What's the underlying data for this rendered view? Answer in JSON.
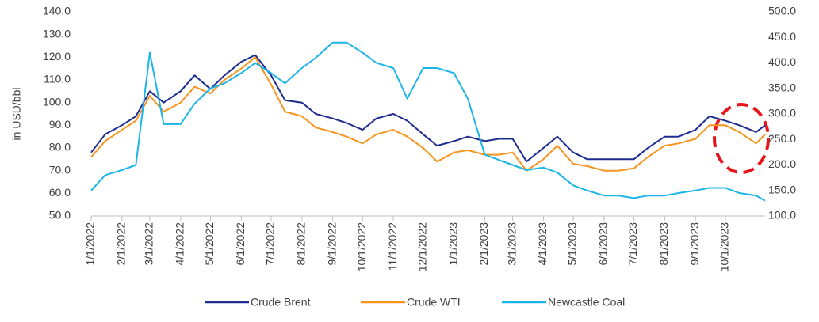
{
  "chart_data": {
    "type": "line",
    "y_label": "in USD/bbl",
    "x": [
      "1/1/2022",
      "1/15/2022",
      "2/1/2022",
      "2/15/2022",
      "3/1/2022",
      "3/15/2022",
      "4/1/2022",
      "4/15/2022",
      "5/1/2022",
      "5/15/2022",
      "6/1/2022",
      "6/15/2022",
      "7/1/2022",
      "7/15/2022",
      "8/1/2022",
      "8/15/2022",
      "9/1/2022",
      "9/15/2022",
      "10/1/2022",
      "10/15/2022",
      "11/1/2022",
      "11/15/2022",
      "12/1/2022",
      "12/15/2022",
      "1/1/2023",
      "1/15/2023",
      "2/1/2023",
      "2/15/2023",
      "3/1/2023",
      "3/15/2023",
      "4/1/2023",
      "4/15/2023",
      "5/1/2023",
      "5/15/2023",
      "6/1/2023",
      "6/15/2023",
      "7/1/2023",
      "7/15/2023",
      "8/1/2023",
      "8/15/2023",
      "9/1/2023",
      "9/15/2023",
      "10/1/2023",
      "10/15/2023",
      "11/1/2023",
      "11/10/2023"
    ],
    "xlim": [
      "1/1/2022",
      "11/10/2023"
    ],
    "xticks": [
      "1/1/2022",
      "2/1/2022",
      "3/1/2022",
      "4/1/2022",
      "5/1/2022",
      "6/1/2022",
      "7/1/2022",
      "8/1/2022",
      "9/1/2022",
      "10/1/2022",
      "11/1/2022",
      "12/1/2022",
      "1/1/2023",
      "2/1/2023",
      "3/1/2023",
      "4/1/2023",
      "5/1/2023",
      "6/1/2023",
      "7/1/2023",
      "8/1/2023",
      "9/1/2023",
      "10/1/2023"
    ],
    "ylim": [
      50,
      140
    ],
    "yticks": [
      {
        "value": 50,
        "label": "50.0"
      },
      {
        "value": 60,
        "label": "60.0"
      },
      {
        "value": 70,
        "label": "70.0"
      },
      {
        "value": 80,
        "label": "80.0"
      },
      {
        "value": 90,
        "label": "90.0"
      },
      {
        "value": 100,
        "label": "100.0"
      },
      {
        "value": 110,
        "label": "110.0"
      },
      {
        "value": 120,
        "label": "120.0"
      },
      {
        "value": 130,
        "label": "130.0"
      },
      {
        "value": 140,
        "label": "140.0"
      }
    ],
    "y2lim": [
      100,
      500
    ],
    "y2ticks": [
      {
        "value": 100,
        "label": "100.0"
      },
      {
        "value": 150,
        "label": "150.0"
      },
      {
        "value": 200,
        "label": "200.0"
      },
      {
        "value": 250,
        "label": "250.0"
      },
      {
        "value": 300,
        "label": "300.0"
      },
      {
        "value": 350,
        "label": "350.0"
      },
      {
        "value": 400,
        "label": "400.0"
      },
      {
        "value": 450,
        "label": "450.0"
      },
      {
        "value": 500,
        "label": "500.0"
      }
    ],
    "series": [
      {
        "name": "Crude Brent",
        "color": "#1f2c8f",
        "values": [
          78,
          86,
          90,
          94,
          105,
          100,
          105,
          112,
          106,
          112,
          118,
          121,
          112,
          101,
          100,
          95,
          93,
          91,
          88,
          93,
          95,
          92,
          86,
          81,
          83,
          85,
          83,
          84,
          84,
          74,
          80,
          85,
          78,
          75,
          75,
          75,
          75,
          80,
          85,
          85,
          88,
          94,
          92,
          90,
          87,
          90
        ]
      },
      {
        "name": "Crude WTI",
        "color": "#f7941d",
        "values": [
          76,
          83,
          88,
          92,
          103,
          96,
          100,
          107,
          104,
          110,
          115,
          120,
          108,
          96,
          94,
          89,
          87,
          85,
          82,
          86,
          88,
          85,
          80,
          74,
          78,
          79,
          77,
          77,
          78,
          70,
          75,
          81,
          73,
          72,
          70,
          70,
          71,
          76,
          81,
          82,
          84,
          90,
          90,
          87,
          82,
          86
        ]
      },
      {
        "name": "Newcastle Coal",
        "color": "#1cb5e8",
        "axis": "y2",
        "values": [
          150,
          180,
          190,
          200,
          420,
          280,
          280,
          320,
          350,
          360,
          380,
          400,
          380,
          360,
          390,
          410,
          440,
          440,
          420,
          400,
          390,
          330,
          390,
          390,
          380,
          330,
          220,
          210,
          200,
          190,
          195,
          185,
          160,
          150,
          140,
          140,
          135,
          140,
          140,
          145,
          150,
          155,
          155,
          145,
          140,
          130
        ]
      }
    ]
  }
}
